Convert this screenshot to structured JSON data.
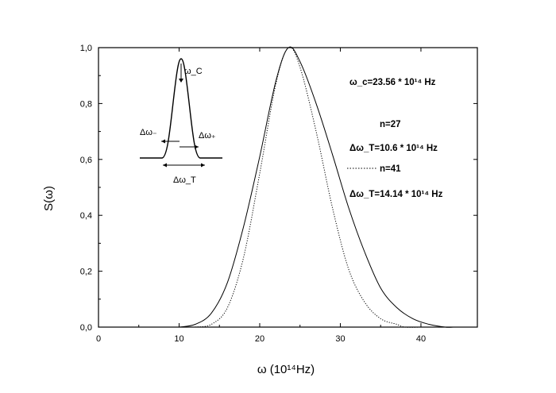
{
  "chart_data": {
    "type": "line",
    "title": "",
    "xlabel": "ω  (10¹⁴Hz)",
    "ylabel": "S(ω)",
    "xlim": [
      0,
      47
    ],
    "ylim": [
      0,
      1.0
    ],
    "x_ticks": [
      0,
      10,
      20,
      30,
      40
    ],
    "x_tick_labels": [
      "0",
      "10",
      "20",
      "30",
      "40"
    ],
    "y_ticks": [
      0,
      0.2,
      0.4,
      0.6,
      0.8,
      1.0
    ],
    "y_tick_labels": [
      "0,0",
      "0,2",
      "0,4",
      "0,6",
      "0,8",
      "1,0"
    ],
    "grid": false,
    "series": [
      {
        "name": "n=27",
        "style": "solid",
        "color": "#000000",
        "x": [
          10,
          12,
          14,
          16,
          18,
          20,
          22,
          23.56,
          25,
          27,
          29,
          31,
          33,
          35,
          37,
          39,
          41,
          43,
          44
        ],
        "y": [
          0.0,
          0.01,
          0.05,
          0.16,
          0.36,
          0.61,
          0.88,
          1.0,
          0.95,
          0.8,
          0.62,
          0.43,
          0.27,
          0.14,
          0.07,
          0.03,
          0.01,
          0.0,
          0.0
        ]
      },
      {
        "name": "n=41",
        "style": "dotted",
        "color": "#000000",
        "x": [
          12,
          14,
          16,
          18,
          20,
          22,
          23.56,
          25,
          27,
          29,
          31,
          33,
          35,
          37,
          38,
          40
        ],
        "y": [
          0.0,
          0.01,
          0.07,
          0.25,
          0.55,
          0.87,
          1.0,
          0.93,
          0.7,
          0.43,
          0.21,
          0.09,
          0.03,
          0.01,
          0.0,
          0.0
        ]
      }
    ],
    "annotations": [
      {
        "text": "ω_c=23.56 * 10¹⁴ Hz"
      },
      {
        "text": "n=27"
      },
      {
        "text": "Δω_T=10.6 * 10¹⁴ Hz"
      },
      {
        "text": "n=41"
      },
      {
        "text": "Δω_T=14.14 * 10¹⁴ Hz"
      }
    ],
    "inset": {
      "labels": [
        "ω_C",
        "Δω₋",
        "Δω₊",
        "Δω_T"
      ]
    }
  }
}
